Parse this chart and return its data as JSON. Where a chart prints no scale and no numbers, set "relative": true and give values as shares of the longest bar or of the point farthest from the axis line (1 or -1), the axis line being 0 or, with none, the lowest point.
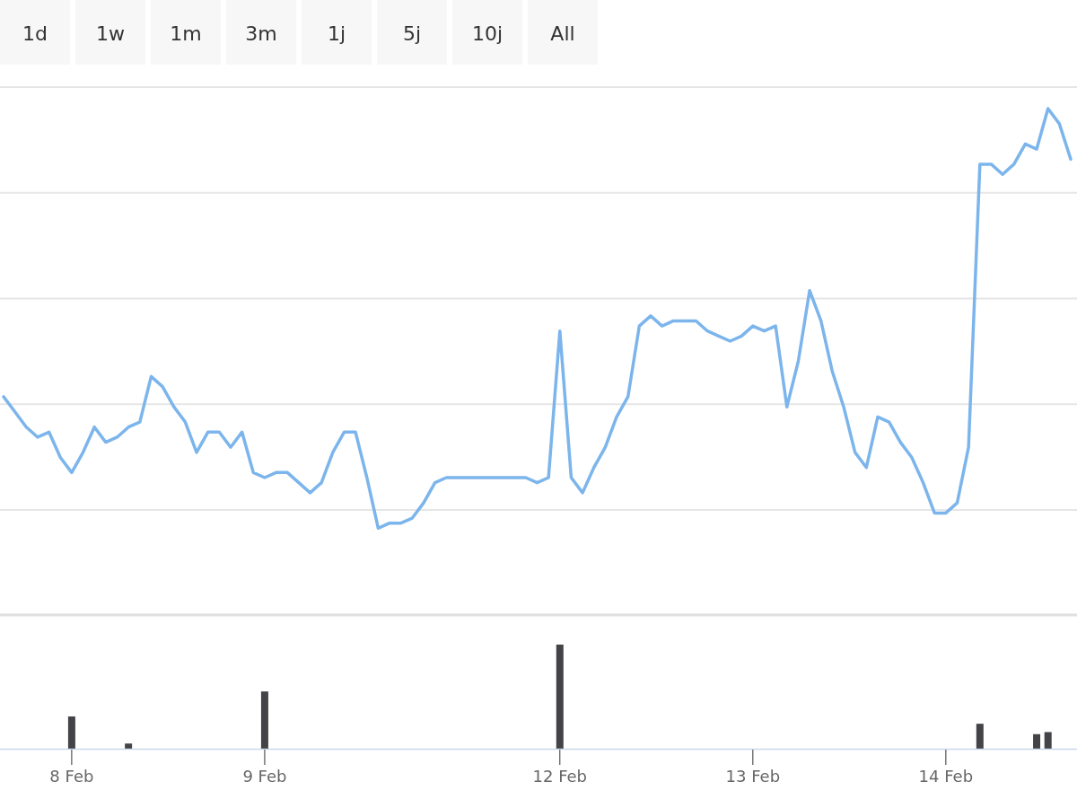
{
  "chart_data": [
    {
      "type": "line",
      "relative": true,
      "grid": "y",
      "annotations": [
        "1d",
        "1w",
        "1m",
        "3m",
        "1j",
        "5j",
        "10j",
        "All"
      ],
      "categories": [
        null,
        null,
        null,
        null,
        null,
        null,
        null,
        null,
        null,
        null,
        null,
        null,
        null,
        null,
        null,
        null,
        null,
        null,
        null,
        null,
        null,
        null,
        null,
        null,
        null,
        null,
        null,
        null,
        null,
        null,
        null,
        null,
        null,
        null,
        null,
        null,
        null,
        null,
        null,
        null,
        null,
        null,
        null,
        null,
        null,
        null,
        null,
        null,
        null,
        null,
        null,
        null,
        null,
        null,
        null,
        null,
        null,
        null,
        null,
        null,
        null,
        null,
        null,
        null,
        null,
        null,
        null,
        null,
        null,
        null,
        null,
        null,
        null,
        null,
        null,
        null,
        null,
        null,
        null,
        null,
        null,
        null,
        null,
        null,
        null,
        null,
        null,
        null,
        null,
        null,
        null,
        null,
        null,
        null,
        null
      ],
      "series": [
        {
          "color": "#7cb5ec",
          "values": [
            0.43,
            0.4,
            0.37,
            0.35,
            0.36,
            0.31,
            0.28,
            0.32,
            0.37,
            0.34,
            0.35,
            0.37,
            0.38,
            0.47,
            0.45,
            0.41,
            0.38,
            0.32,
            0.36,
            0.36,
            0.33,
            0.36,
            0.28,
            0.27,
            0.28,
            0.28,
            0.26,
            0.24,
            0.26,
            0.32,
            0.36,
            0.36,
            0.27,
            0.17,
            0.18,
            0.18,
            0.19,
            0.22,
            0.26,
            0.27,
            0.27,
            0.27,
            0.27,
            0.27,
            0.27,
            0.27,
            0.27,
            0.26,
            0.27,
            0.56,
            0.27,
            0.24,
            0.29,
            0.33,
            0.39,
            0.43,
            0.57,
            0.59,
            0.57,
            0.58,
            0.58,
            0.58,
            0.56,
            0.55,
            0.54,
            0.55,
            0.57,
            0.56,
            0.57,
            0.41,
            0.5,
            0.64,
            0.58,
            0.48,
            0.41,
            0.32,
            0.29,
            0.39,
            0.38,
            0.34,
            0.31,
            0.26,
            0.2,
            0.2,
            0.22,
            0.33,
            0.89,
            0.89,
            0.87,
            0.89,
            0.93,
            0.92,
            1,
            0.97,
            0.9
          ]
        }
      ]
    },
    {
      "type": "bar",
      "relative": true,
      "categories": [
        null,
        null,
        null,
        null,
        null,
        null,
        "8 Feb",
        null,
        null,
        null,
        null,
        null,
        null,
        null,
        null,
        null,
        null,
        null,
        null,
        null,
        null,
        null,
        null,
        "9 Feb",
        null,
        null,
        null,
        null,
        null,
        null,
        null,
        null,
        null,
        null,
        null,
        null,
        null,
        null,
        null,
        null,
        null,
        null,
        null,
        null,
        null,
        null,
        null,
        null,
        null,
        "12 Feb",
        null,
        null,
        null,
        null,
        null,
        null,
        null,
        null,
        null,
        null,
        null,
        null,
        null,
        null,
        null,
        null,
        "13 Feb",
        null,
        null,
        null,
        null,
        null,
        null,
        null,
        null,
        null,
        null,
        null,
        null,
        null,
        null,
        null,
        null,
        "14 Feb",
        null,
        null,
        null,
        null,
        null,
        null,
        null,
        null,
        null,
        null,
        null
      ],
      "color": "#434348",
      "values": [
        0,
        0,
        0,
        0,
        0,
        0,
        0.31,
        0,
        0,
        0,
        0,
        0.05,
        0,
        0,
        0,
        0,
        0,
        0,
        0,
        0,
        0,
        0,
        0,
        0.55,
        0,
        0,
        0,
        0,
        0,
        0,
        0,
        0,
        0,
        0,
        0,
        0,
        0,
        0,
        0,
        0,
        0,
        0,
        0,
        0,
        0,
        0,
        0,
        0,
        0,
        1,
        0,
        0,
        0,
        0,
        0,
        0,
        0,
        0,
        0,
        0,
        0,
        0,
        0,
        0,
        0,
        0,
        0,
        0,
        0,
        0,
        0,
        0,
        0,
        0,
        0,
        0,
        0,
        0,
        0,
        0,
        0,
        0,
        0,
        0,
        0,
        0,
        0.24,
        0,
        0,
        0,
        0,
        0.14,
        0.16,
        0,
        0
      ]
    }
  ]
}
